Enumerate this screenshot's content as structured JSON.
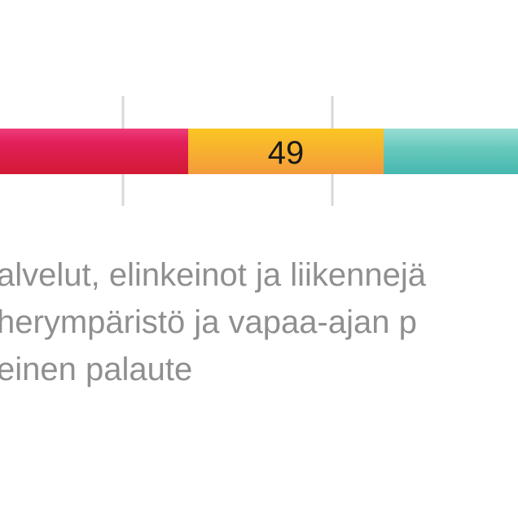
{
  "chart_data": {
    "type": "bar",
    "orientation": "horizontal",
    "stacked": true,
    "categories": [
      ""
    ],
    "series": [
      {
        "name": "Palvelut, elinkeinot ja liikennejärjestelyt",
        "values": [
          null
        ],
        "color": "#e0214f"
      },
      {
        "name": "Viherympäristö ja vapaa-ajan palvelut",
        "values": [
          49
        ],
        "color": "#f7b02a"
      },
      {
        "name": "Yleinen palaute",
        "values": [
          null
        ],
        "color": "#6ccbc0"
      }
    ],
    "data_labels": [
      "",
      "49",
      ""
    ],
    "gridlines": true,
    "legend_position": "bottom"
  },
  "legend": {
    "items": [
      {
        "text": "alvelut, elinkeinot ja liikennejä"
      },
      {
        "text": "herympäristö ja vapaa-ajan p"
      },
      {
        "text": "einen palaute"
      }
    ]
  }
}
